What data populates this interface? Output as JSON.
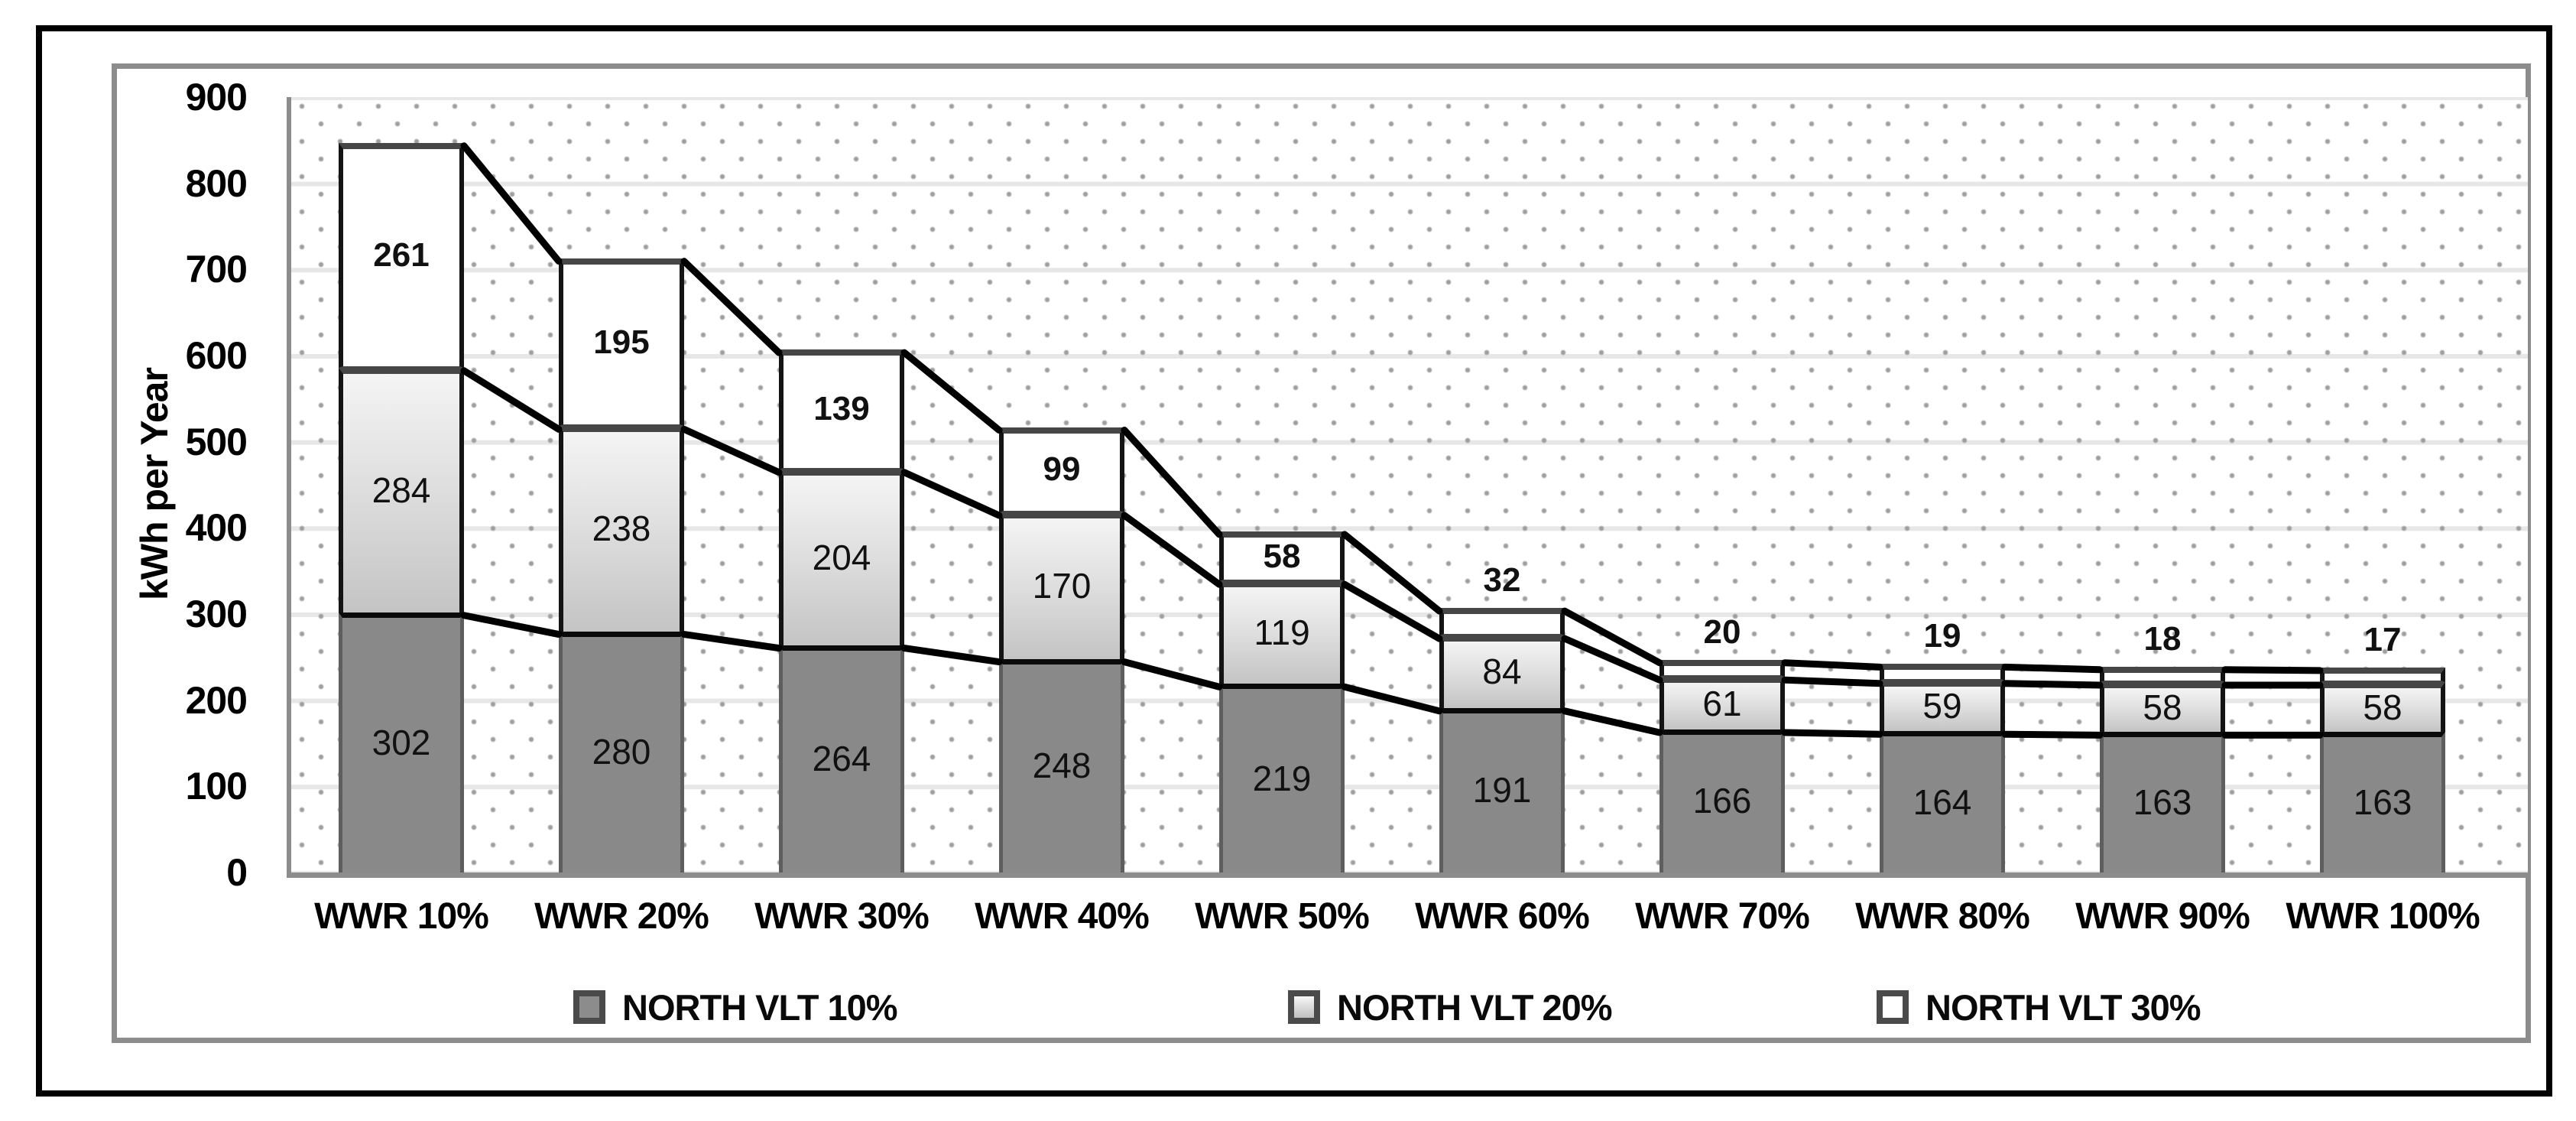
{
  "chart_data": {
    "type": "bar",
    "stacked": true,
    "title": "",
    "xlabel": "",
    "ylabel": "kWh per Year",
    "ylim": [
      0,
      900
    ],
    "yticks": [
      0,
      100,
      200,
      300,
      400,
      500,
      600,
      700,
      800,
      900
    ],
    "grid": true,
    "plot_background": "dotted-pattern",
    "legend_position": "bottom",
    "connector_lines": true,
    "categories": [
      "WWR 10%",
      "WWR 20%",
      "WWR 30%",
      "WWR 40%",
      "WWR 50%",
      "WWR 60%",
      "WWR 70%",
      "WWR 80%",
      "WWR 90%",
      "WWR 100%"
    ],
    "series": [
      {
        "name": "NORTH VLT 10%",
        "values": [
          302,
          280,
          264,
          248,
          219,
          191,
          166,
          164,
          163,
          163
        ],
        "fill": "#898989",
        "label_style": "normal"
      },
      {
        "name": "NORTH VLT 20%",
        "values": [
          284,
          238,
          204,
          170,
          119,
          84,
          61,
          59,
          58,
          58
        ],
        "fill_gradient_top": "#f4f4f4",
        "fill_gradient_bottom": "#c4c4c4",
        "label_style": "normal"
      },
      {
        "name": "NORTH VLT 30%",
        "values": [
          261,
          195,
          139,
          99,
          58,
          32,
          20,
          19,
          18,
          17
        ],
        "fill": "#ffffff",
        "label_style": "bold"
      }
    ],
    "colors": {
      "outer_border": "#000000",
      "inner_border": "#8c8c8c",
      "axis_line": "#8c8c8c",
      "gridline": "#e7e7e7",
      "dot_pattern": "#9f9f9f",
      "connector_line": "#000000",
      "segment_border_dark_top": "#0a0a0a",
      "segment_border_light_top": "#464646",
      "text": "#000000"
    }
  }
}
